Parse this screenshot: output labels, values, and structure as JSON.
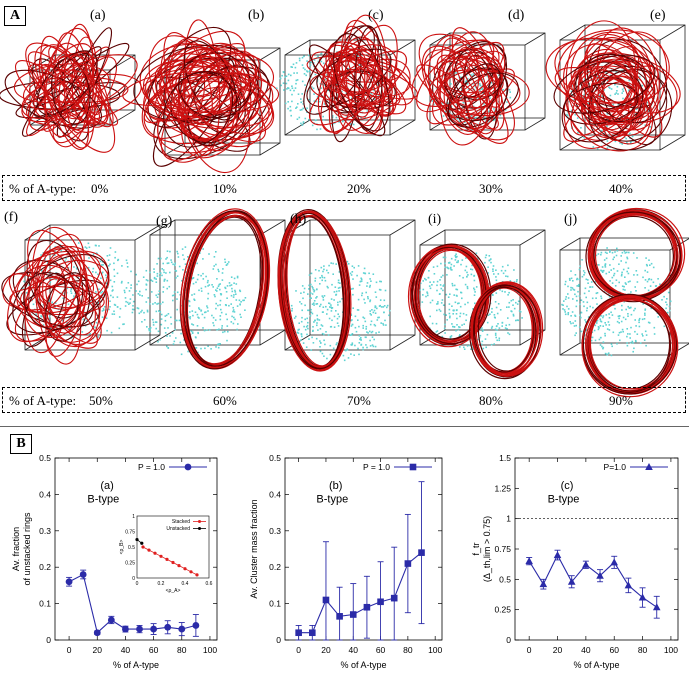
{
  "panel_a": {
    "label": "A",
    "row1": {
      "letters": [
        "(a)",
        "(b)",
        "(c)",
        "(d)",
        "(e)"
      ],
      "percent_label": "% of A-type:",
      "percents": [
        "0%",
        "10%",
        "20%",
        "30%",
        "40%"
      ]
    },
    "row2": {
      "letters": [
        "(f)",
        "(g)",
        "(h)",
        "(i)",
        "(j)"
      ],
      "percent_label": "% of A-type:",
      "percents": [
        "50%",
        "60%",
        "70%",
        "80%",
        "90%"
      ]
    },
    "colors": {
      "rings": "#cc1111",
      "ring_edge": "#5a0000",
      "unstacked": "#5fd3d3",
      "box": "#222222"
    }
  },
  "panel_b": {
    "label": "B"
  },
  "chart_data": [
    {
      "type": "line",
      "id": "unstacked",
      "subtitle": "(a)",
      "subtitle2": "B-type",
      "legend": "P = 1.0",
      "xlabel": "% of A-type",
      "ylabel_line1": "Av. fraction",
      "ylabel_line2": "of unstacked rings",
      "xlim": [
        -10,
        105
      ],
      "ylim": [
        0,
        0.5
      ],
      "xticks": [
        0,
        20,
        40,
        60,
        80,
        100
      ],
      "yticks": [
        0,
        0.1,
        0.2,
        0.3,
        0.4,
        0.5
      ],
      "ytick_labels": [
        "0",
        "0.1",
        "0.2",
        "0.3",
        "0.4",
        "0.5"
      ],
      "marker": "circle",
      "color": "#2b2ba8",
      "x": [
        0,
        10,
        20,
        30,
        40,
        50,
        60,
        70,
        80,
        90
      ],
      "y": [
        0.16,
        0.18,
        0.02,
        0.055,
        0.03,
        0.03,
        0.03,
        0.035,
        0.03,
        0.04
      ],
      "err": [
        0.012,
        0.012,
        0.005,
        0.01,
        0.008,
        0.01,
        0.015,
        0.018,
        0.018,
        0.03
      ],
      "inset": {
        "legend_stacked": "Stacked",
        "legend_unstacked": "Unstacked",
        "xlabel": "<ρ_A>",
        "ylabel": "<ρ_B>",
        "xlim": [
          0,
          0.6
        ],
        "ylim": [
          0,
          1
        ],
        "xticks": [
          0,
          0.2,
          0.4,
          0.6
        ],
        "xtick_labels": [
          "0",
          "0.2",
          "0.4",
          "0.6"
        ],
        "yticks": [
          0,
          0.25,
          0.5,
          0.75,
          1
        ],
        "ytick_labels": [
          "0",
          "0.25",
          "0.5",
          "0.75",
          "1"
        ],
        "stacked_color": "#e02020",
        "unstacked_color": "#000000",
        "unstacked_x": [
          0.0,
          0.04
        ],
        "unstacked_y": [
          0.62,
          0.56
        ],
        "stacked_x": [
          0.05,
          0.1,
          0.15,
          0.2,
          0.25,
          0.3,
          0.35,
          0.4,
          0.45,
          0.5
        ],
        "stacked_y": [
          0.5,
          0.45,
          0.4,
          0.35,
          0.3,
          0.25,
          0.2,
          0.15,
          0.1,
          0.05
        ]
      }
    },
    {
      "type": "line",
      "id": "cluster",
      "subtitle": "(b)",
      "subtitle2": "B-type",
      "legend": "P = 1.0",
      "xlabel": "% of A-type",
      "ylabel_line1": "Av. Cluster mass fraction",
      "ylabel_line2": "",
      "xlim": [
        -10,
        105
      ],
      "ylim": [
        0,
        0.5
      ],
      "xticks": [
        0,
        20,
        40,
        60,
        80,
        100
      ],
      "yticks": [
        0,
        0.1,
        0.2,
        0.3,
        0.4,
        0.5
      ],
      "ytick_labels": [
        "0",
        "0.1",
        "0.2",
        "0.3",
        "0.4",
        "0.5"
      ],
      "marker": "square",
      "color": "#2b2ba8",
      "x": [
        0,
        10,
        20,
        30,
        40,
        50,
        60,
        70,
        80,
        90
      ],
      "y": [
        0.02,
        0.02,
        0.11,
        0.065,
        0.07,
        0.09,
        0.105,
        0.115,
        0.21,
        0.24
      ],
      "err": [
        0.02,
        0.02,
        0.16,
        0.08,
        0.085,
        0.085,
        0.11,
        0.14,
        0.135,
        0.195
      ]
    },
    {
      "type": "line",
      "id": "ftr",
      "subtitle": "(c)",
      "subtitle2": "B-type",
      "legend": "P=1.0",
      "xlabel": "% of A-type",
      "ylabel_line1": "f_tr",
      "ylabel_line2": "(Δ_th,lim > 0.75)",
      "xlim": [
        -10,
        105
      ],
      "ylim": [
        0,
        1.5
      ],
      "xticks": [
        0,
        20,
        40,
        60,
        80,
        100
      ],
      "yticks": [
        0,
        0.25,
        0.5,
        0.75,
        1,
        1.25,
        1.5
      ],
      "ytick_labels": [
        "0",
        "0.25",
        "0.5",
        "0.75",
        "1",
        "1.25",
        "1.5"
      ],
      "reference_line": 1.0,
      "marker": "triangle",
      "color": "#2b2ba8",
      "x": [
        0,
        10,
        20,
        30,
        40,
        50,
        60,
        70,
        80,
        90
      ],
      "y": [
        0.65,
        0.46,
        0.7,
        0.48,
        0.62,
        0.53,
        0.64,
        0.45,
        0.35,
        0.27
      ],
      "err": [
        0.03,
        0.04,
        0.04,
        0.05,
        0.03,
        0.05,
        0.05,
        0.06,
        0.08,
        0.09
      ]
    }
  ]
}
